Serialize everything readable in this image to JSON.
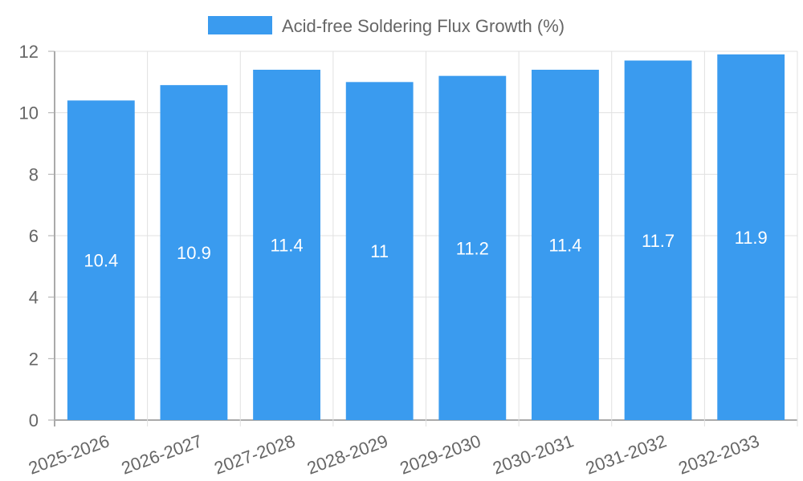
{
  "chart_data": {
    "type": "bar",
    "title": "",
    "legend": [
      {
        "label": "Acid-free Soldering Flux Growth (%)",
        "color": "#3a9bef"
      }
    ],
    "legend_position": "top",
    "categories": [
      "2025-2026",
      "2026-2027",
      "2027-2028",
      "2028-2029",
      "2029-2030",
      "2030-2031",
      "2031-2032",
      "2032-2033"
    ],
    "series": [
      {
        "name": "Acid-free Soldering Flux Growth (%)",
        "values": [
          10.4,
          10.9,
          11.4,
          11,
          11.2,
          11.4,
          11.7,
          11.9
        ],
        "color": "#3a9bef"
      }
    ],
    "value_labels": [
      "10.4",
      "10.9",
      "11.4",
      "11",
      "11.2",
      "11.4",
      "11.7",
      "11.9"
    ],
    "xlabel": "",
    "ylabel": "",
    "ylim": [
      0,
      12
    ],
    "yticks": [
      "0",
      "2",
      "4",
      "6",
      "8",
      "10",
      "12"
    ],
    "grid": true,
    "x_tick_rotation": -20
  }
}
